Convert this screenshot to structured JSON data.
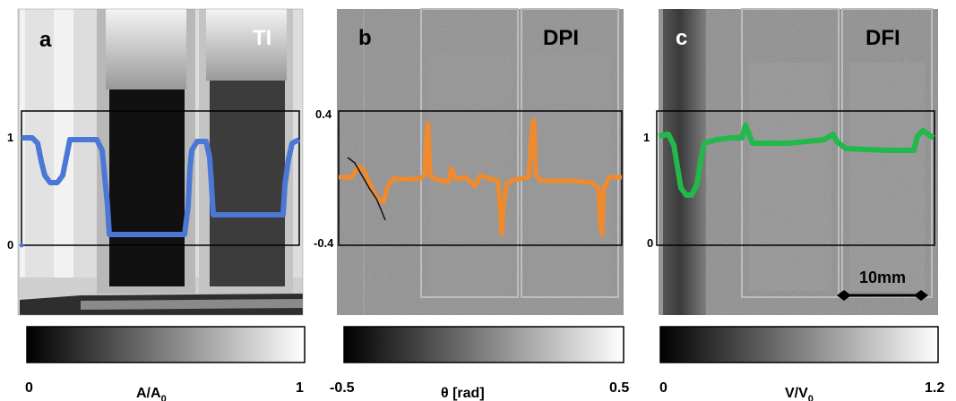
{
  "panels": [
    {
      "letter": "a",
      "mode": "TI",
      "axis_ticks": [
        "1",
        "0"
      ],
      "colorbar": {
        "min": "0",
        "max": "1",
        "unit_main": "A/A",
        "unit_sub": "0"
      },
      "trace_color": "#4a78d4"
    },
    {
      "letter": "b",
      "mode": "DPI",
      "axis_ticks": [
        "0.4",
        "-0.4"
      ],
      "colorbar": {
        "min": "-0.5",
        "max": "0.5",
        "unit_main": "θ  [rad]",
        "unit_sub": ""
      },
      "trace_color": "#f08a2c"
    },
    {
      "letter": "c",
      "mode": "DFI",
      "axis_ticks": [
        "1",
        "0"
      ],
      "colorbar": {
        "min": "0",
        "max": "1.2",
        "unit_main": "V/V",
        "unit_sub": "0"
      },
      "trace_color": "#22b84a"
    }
  ],
  "scalebar": {
    "label": "10mm"
  }
}
